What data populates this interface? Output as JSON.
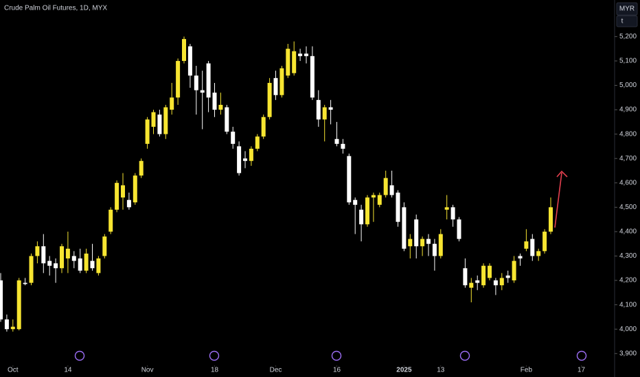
{
  "chart_data": {
    "type": "candlestick",
    "title": "Crude Palm Oil Futures, 1D, MYX",
    "currency": "MYR",
    "unit": "t",
    "up_color": "#f7e531",
    "down_color": "#ffffff",
    "open": [
      4200,
      4040,
      4000,
      4000,
      4190,
      4190,
      4300,
      4340,
      4280,
      4270,
      4250,
      4290,
      4300,
      4290,
      4240,
      4280,
      4230,
      4300,
      4400,
      4490,
      4540,
      4530,
      4520,
      4630,
      4760,
      4830,
      4880,
      4800,
      4900,
      4950,
      5100,
      5160,
      5040,
      4980,
      5090,
      4970,
      4900,
      4910,
      4810,
      4750,
      4700,
      4690,
      4740,
      4790,
      4870,
      5030,
      4960,
      5040,
      5050,
      5130,
      5130,
      5120,
      4940,
      4860,
      4910,
      4780,
      4760,
      4710,
      4530,
      4490,
      4430,
      4540,
      4510,
      4550,
      4590,
      4560,
      4500,
      4340,
      4450,
      4340,
      4370,
      4350,
      4300,
      4490,
      4500,
      4450,
      4250,
      4170,
      4200,
      4180,
      4210,
      4200,
      4180,
      4220,
      4200,
      4300,
      4330,
      4370,
      4300,
      4320,
      4400
    ],
    "high": [
      4230,
      4060,
      4040,
      4210,
      4210,
      4310,
      4360,
      4390,
      4300,
      4290,
      4350,
      4400,
      4320,
      4330,
      4330,
      4350,
      4300,
      4390,
      4500,
      4610,
      4640,
      4560,
      4640,
      4700,
      4870,
      4900,
      4900,
      4920,
      5010,
      5110,
      5200,
      5170,
      5080,
      5060,
      5100,
      5010,
      4970,
      4920,
      4830,
      4770,
      4730,
      4750,
      4800,
      4880,
      5030,
      5060,
      5080,
      5170,
      5180,
      5150,
      5160,
      5160,
      4980,
      4920,
      4940,
      4850,
      4780,
      4720,
      4540,
      4510,
      4550,
      4560,
      4560,
      4650,
      4650,
      4570,
      4520,
      4390,
      4470,
      4380,
      4390,
      4370,
      4410,
      4550,
      4510,
      4460,
      4290,
      4210,
      4220,
      4270,
      4270,
      4210,
      4230,
      4240,
      4300,
      4310,
      4410,
      4390,
      4330,
      4410,
      4540
    ],
    "low": [
      4030,
      3990,
      3990,
      3995,
      4180,
      4180,
      4270,
      4230,
      4220,
      4190,
      4230,
      4230,
      4250,
      4230,
      4230,
      4240,
      4220,
      4290,
      4390,
      4480,
      4490,
      4490,
      4510,
      4620,
      4740,
      4800,
      4790,
      4780,
      4880,
      4920,
      5090,
      4990,
      4880,
      4820,
      4890,
      4870,
      4880,
      4800,
      4740,
      4630,
      4660,
      4670,
      4730,
      4780,
      4860,
      4940,
      4950,
      5030,
      5040,
      5100,
      5090,
      4940,
      4830,
      4770,
      4840,
      4750,
      4720,
      4510,
      4390,
      4360,
      4420,
      4440,
      4500,
      4540,
      4540,
      4420,
      4320,
      4290,
      4290,
      4300,
      4300,
      4240,
      4290,
      4450,
      4420,
      4360,
      4170,
      4110,
      4160,
      4170,
      4200,
      4140,
      4160,
      4190,
      4190,
      4260,
      4320,
      4280,
      4280,
      4310,
      4390
    ],
    "close": [
      4040,
      4000,
      4010,
      4200,
      4185,
      4300,
      4340,
      4270,
      4260,
      4250,
      4340,
      4330,
      4280,
      4240,
      4310,
      4250,
      4290,
      4380,
      4490,
      4600,
      4590,
      4500,
      4630,
      4690,
      4860,
      4890,
      4800,
      4910,
      4950,
      5100,
      5190,
      5040,
      4980,
      4970,
      4950,
      4900,
      4920,
      4810,
      4760,
      4640,
      4690,
      4740,
      4790,
      4870,
      5010,
      4960,
      5070,
      5150,
      5140,
      5120,
      5120,
      4950,
      4860,
      4910,
      4900,
      4760,
      4740,
      4520,
      4510,
      4430,
      4540,
      4550,
      4550,
      4620,
      4550,
      4440,
      4330,
      4370,
      4340,
      4370,
      4350,
      4300,
      4390,
      4500,
      4450,
      4370,
      4180,
      4190,
      4190,
      4260,
      4260,
      4180,
      4210,
      4210,
      4280,
      4290,
      4360,
      4300,
      4320,
      4400,
      4500
    ],
    "xticks": [
      {
        "value": 2,
        "label": "Oct"
      },
      {
        "value": 11,
        "label": "14"
      },
      {
        "value": 24,
        "label": "Nov"
      },
      {
        "value": 35,
        "label": "18"
      },
      {
        "value": 45,
        "label": "Dec"
      },
      {
        "value": 55,
        "label": "16"
      },
      {
        "value": 66,
        "label": "2025"
      },
      {
        "value": 72,
        "label": "13"
      },
      {
        "value": 86,
        "label": "Feb"
      },
      {
        "value": 95,
        "label": "17"
      }
    ],
    "ylim": [
      3860,
      5350
    ],
    "yticks": [
      {
        "value": 3900,
        "label": "3,900"
      },
      {
        "value": 4000,
        "label": "4,000"
      },
      {
        "value": 4100,
        "label": "4,100"
      },
      {
        "value": 4200,
        "label": "4,200"
      },
      {
        "value": 4300,
        "label": "4,300"
      },
      {
        "value": 4400,
        "label": "4,400"
      },
      {
        "value": 4500,
        "label": "4,500"
      },
      {
        "value": 4600,
        "label": "4,600"
      },
      {
        "value": 4700,
        "label": "4,700"
      },
      {
        "value": 4800,
        "label": "4,800"
      },
      {
        "value": 4900,
        "label": "4,900"
      },
      {
        "value": 5000,
        "label": "5,000"
      },
      {
        "value": 5100,
        "label": "5,100"
      },
      {
        "value": 5200,
        "label": "5,200"
      }
    ]
  }
}
